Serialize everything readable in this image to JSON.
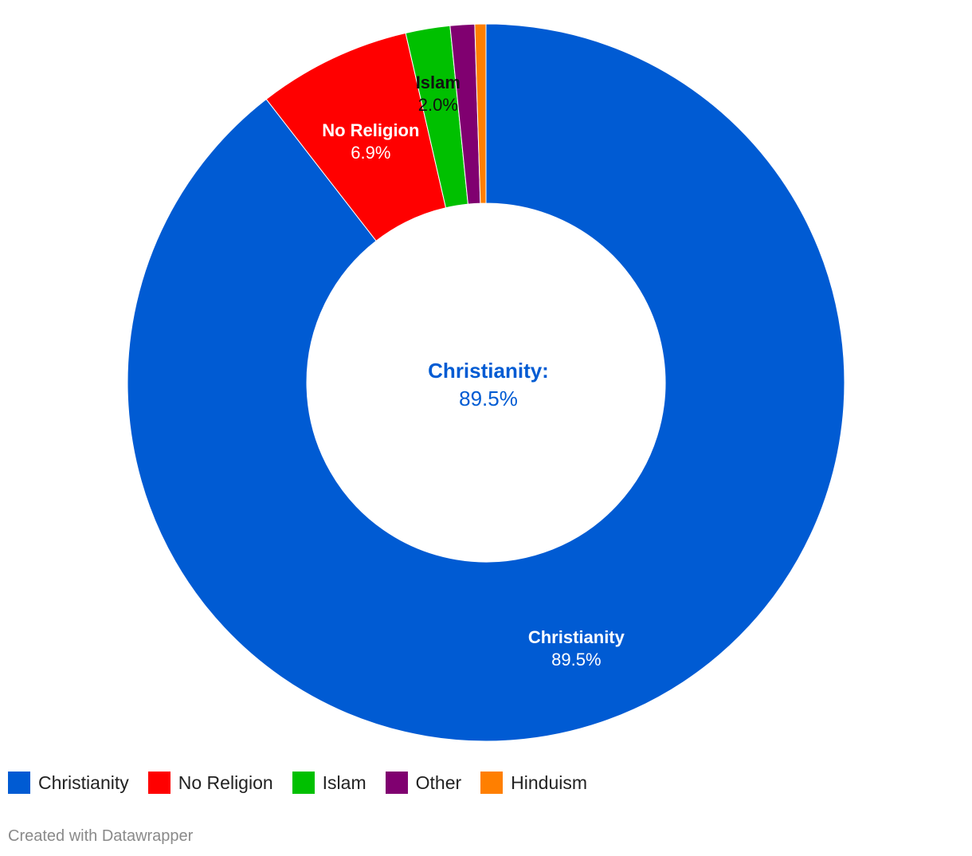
{
  "chart_data": {
    "type": "pie",
    "donut": true,
    "categories": [
      "Christianity",
      "No Religion",
      "Islam",
      "Other",
      "Hinduism"
    ],
    "values": [
      89.5,
      6.9,
      2.0,
      1.1,
      0.5
    ],
    "colors": [
      "#005bd3",
      "#ff0000",
      "#00c000",
      "#800070",
      "#ff7f00"
    ],
    "slice_labels": [
      {
        "name": "Christianity",
        "value": "89.5%",
        "color": "#ffffff"
      },
      {
        "name": "No Religion",
        "value": "6.9%",
        "color": "#ffffff"
      },
      {
        "name": "Islam",
        "value": "2.0%",
        "color": "#111111"
      },
      {
        "name": "",
        "value": "",
        "color": "#111111"
      },
      {
        "name": "",
        "value": "",
        "color": "#111111"
      }
    ],
    "center_label": {
      "name": "Christianity:",
      "value": "89.5%",
      "color": "#005bd3"
    },
    "legend_placement": "bottom-left"
  },
  "legend": {
    "items": [
      {
        "label": "Christianity",
        "color": "#005bd3"
      },
      {
        "label": "No Religion",
        "color": "#ff0000"
      },
      {
        "label": "Islam",
        "color": "#00c000"
      },
      {
        "label": "Other",
        "color": "#800070"
      },
      {
        "label": "Hinduism",
        "color": "#ff7f00"
      }
    ]
  },
  "footer": {
    "credit": "Created with Datawrapper"
  }
}
